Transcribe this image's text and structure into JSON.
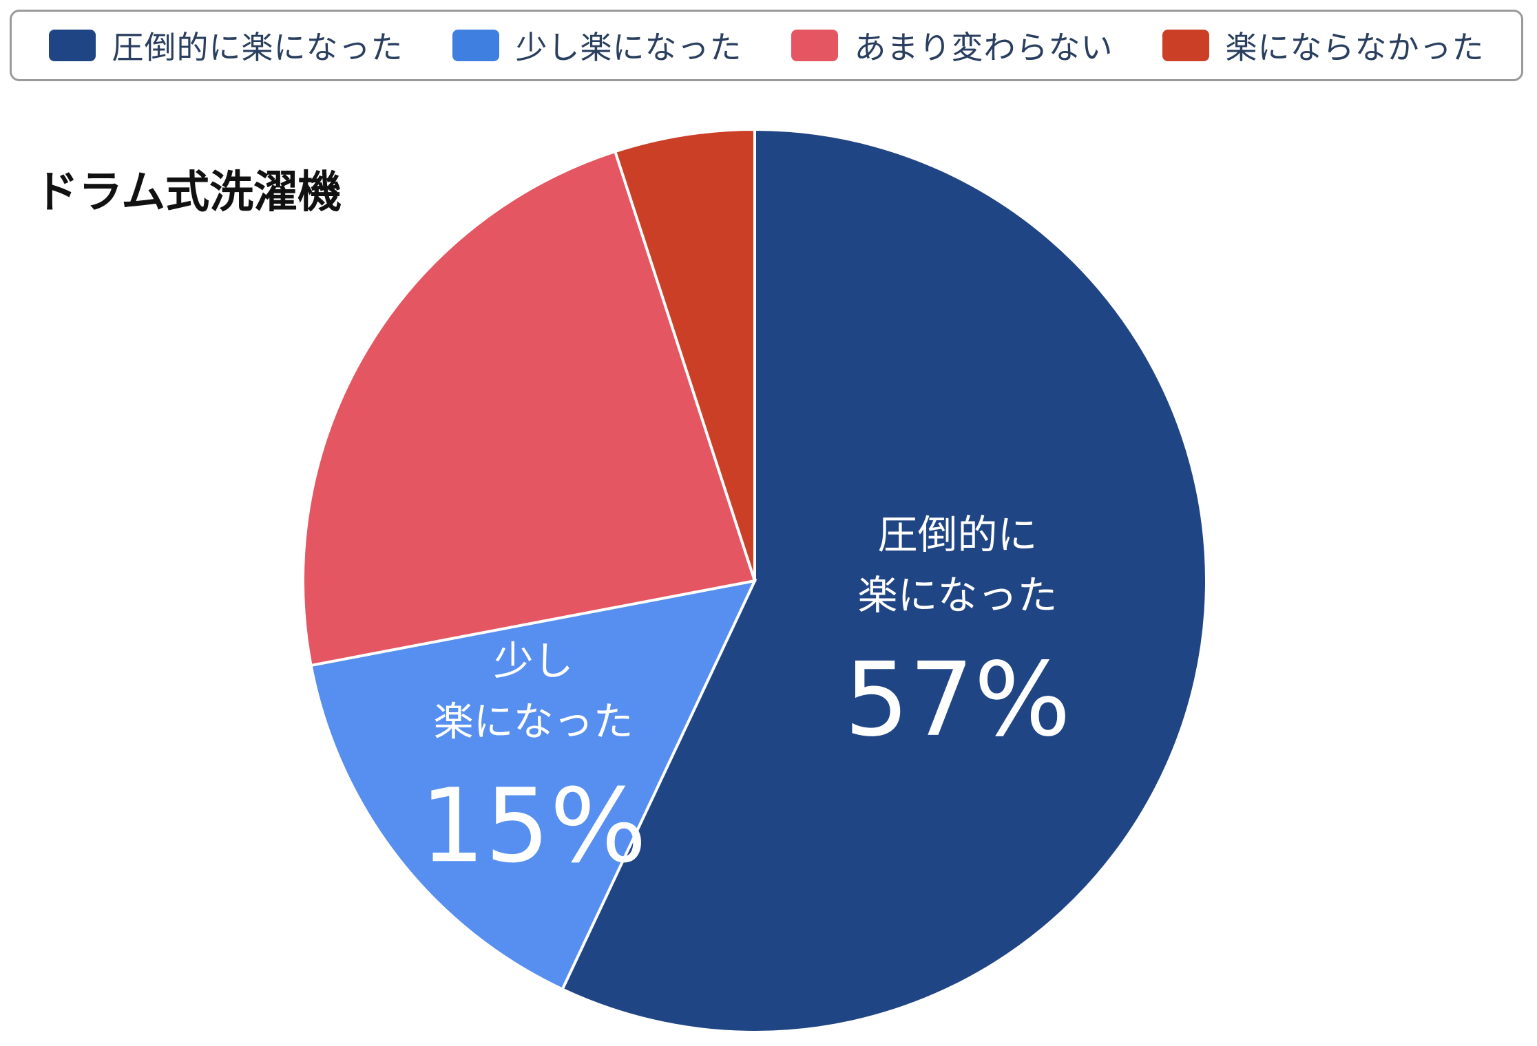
{
  "legend": {
    "items": [
      {
        "label": "圧倒的に楽になった",
        "color": "#1f4584"
      },
      {
        "label": "少し楽になった",
        "color": "#3f7fe0"
      },
      {
        "label": "あまり変わらない",
        "color": "#e45661"
      },
      {
        "label": "楽にならなかった",
        "color": "#cc3f27"
      }
    ]
  },
  "chart_data": {
    "type": "pie",
    "title": "ドラム式洗濯機",
    "start": "12 o'clock",
    "direction": "clockwise",
    "slices": [
      {
        "label": "圧倒的に楽になった",
        "value": 57,
        "color": "#1f4584",
        "display_lines": [
          "圧倒的に",
          "楽になった"
        ],
        "display_value": "57%"
      },
      {
        "label": "少し楽になった",
        "value": 15,
        "color": "#568fef",
        "display_lines": [
          "少し",
          "楽になった"
        ],
        "display_value": "15%"
      },
      {
        "label": "あまり変わらない",
        "value": 23,
        "color": "#e45661"
      },
      {
        "label": "楽にならなかった",
        "value": 5,
        "color": "#cc3f27"
      }
    ]
  }
}
